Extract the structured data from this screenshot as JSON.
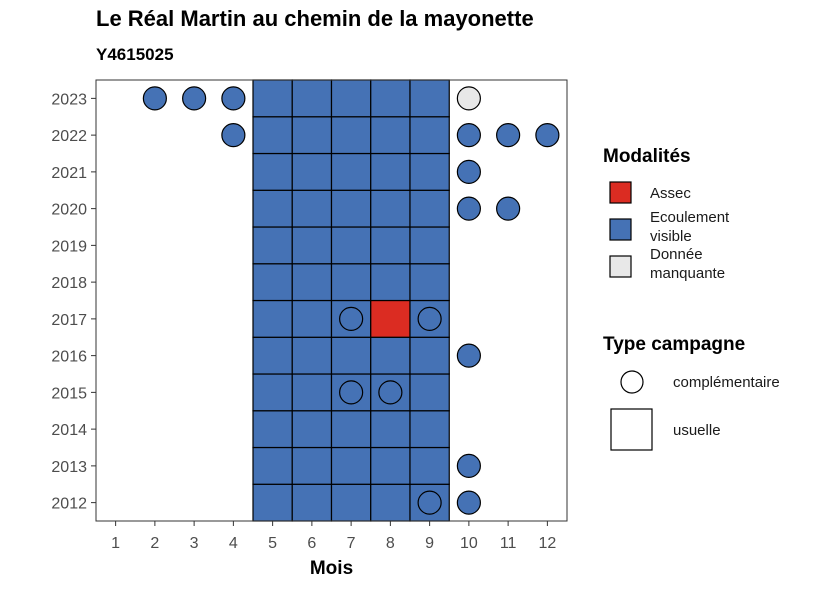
{
  "title": "Le Réal Martin au chemin de la mayonette",
  "subtitle": "Y4615025",
  "colors": {
    "assec": "#DB2C22",
    "ecoulement": "#4572B5",
    "manquante": "#E8E8E8",
    "outline": "#000000",
    "plot_border": "#333333"
  },
  "chart_data": {
    "type": "heatmap",
    "xlabel": "Mois",
    "ylabel": "",
    "x_ticks": [
      1,
      2,
      3,
      4,
      5,
      6,
      7,
      8,
      9,
      10,
      11,
      12
    ],
    "y_ticks": [
      2012,
      2013,
      2014,
      2015,
      2016,
      2017,
      2018,
      2019,
      2020,
      2021,
      2022,
      2023
    ],
    "xlim": [
      0.5,
      12.5
    ],
    "ylim": [
      2011.5,
      2023.5
    ],
    "legend": {
      "position": "right",
      "fill_title": "Modalités",
      "fill_items": [
        {
          "key": "assec",
          "lines": [
            "Assec"
          ]
        },
        {
          "key": "ecoulement",
          "lines": [
            "Ecoulement",
            "visible"
          ]
        },
        {
          "key": "manquante",
          "lines": [
            "Donnée",
            "manquante"
          ]
        }
      ],
      "shape_title": "Type campagne",
      "shape_items": [
        {
          "shape": "circle",
          "label": "complémentaire"
        },
        {
          "shape": "square",
          "label": "usuelle"
        }
      ]
    },
    "usuelle_months": [
      5,
      6,
      7,
      8,
      9
    ],
    "usuelle_years": [
      2012,
      2013,
      2014,
      2015,
      2016,
      2017,
      2018,
      2019,
      2020,
      2021,
      2022,
      2023
    ],
    "usuelle_overrides": [
      {
        "year": 2017,
        "month": 8,
        "value": "assec"
      }
    ],
    "complementaire": [
      {
        "year": 2023,
        "month": 2,
        "value": "ecoulement"
      },
      {
        "year": 2023,
        "month": 3,
        "value": "ecoulement"
      },
      {
        "year": 2023,
        "month": 4,
        "value": "ecoulement"
      },
      {
        "year": 2023,
        "month": 10,
        "value": "manquante"
      },
      {
        "year": 2022,
        "month": 4,
        "value": "ecoulement"
      },
      {
        "year": 2022,
        "month": 10,
        "value": "ecoulement"
      },
      {
        "year": 2022,
        "month": 11,
        "value": "ecoulement"
      },
      {
        "year": 2022,
        "month": 12,
        "value": "ecoulement"
      },
      {
        "year": 2021,
        "month": 10,
        "value": "ecoulement"
      },
      {
        "year": 2020,
        "month": 10,
        "value": "ecoulement"
      },
      {
        "year": 2020,
        "month": 11,
        "value": "ecoulement"
      },
      {
        "year": 2017,
        "month": 7,
        "value": "ecoulement"
      },
      {
        "year": 2017,
        "month": 9,
        "value": "ecoulement"
      },
      {
        "year": 2016,
        "month": 10,
        "value": "ecoulement"
      },
      {
        "year": 2015,
        "month": 7,
        "value": "ecoulement"
      },
      {
        "year": 2015,
        "month": 8,
        "value": "ecoulement"
      },
      {
        "year": 2013,
        "month": 10,
        "value": "ecoulement"
      },
      {
        "year": 2012,
        "month": 9,
        "value": "ecoulement"
      },
      {
        "year": 2012,
        "month": 10,
        "value": "ecoulement"
      }
    ]
  }
}
